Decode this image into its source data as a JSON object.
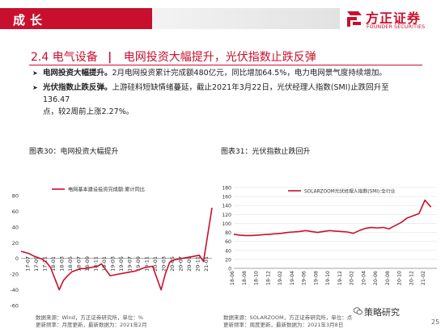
{
  "header": {
    "section_tag": "成长",
    "logo_cn": "方正证券",
    "logo_en": "FOUNDER SECURITIES",
    "brand_color": "#c8102e"
  },
  "heading": {
    "number": "2.4 电气设备",
    "separator": "|",
    "title": "电网投资大幅提升，光伏指数止跌反弹"
  },
  "bullets": [
    {
      "lead": "电网投资大幅提升。",
      "line1": "2月电网投资累计完成额480亿元，同比增加64.5%，电力电网景气度持续增加。",
      "line2": ""
    },
    {
      "lead": "光伏指数止跌反弹。",
      "line1": "上游硅料短缺情绪蔓延，截止2021年3月22日，光伏经理人指数(SMI)止跌回升至136.47",
      "line2": "点，较2周前上涨2.27%。"
    }
  ],
  "figures": [
    {
      "title": "图表30：电网投资大幅提升",
      "source_line1": "数据来源：Wind，方正证券研究所，单位：%",
      "source_line2": "更新频率：月度更新，最新数据为：2021年2月"
    },
    {
      "title": "图表31：光伏指数止跌回升",
      "source_line1": "数据来源：SOLARZOOM，方正证券研究所，单位：点",
      "source_line2": "更新频率：周度更新，最新数据为：2021年3月8日"
    }
  ],
  "chart_data": [
    {
      "type": "line",
      "legend": "电网基本建设投资完成额:累计同比",
      "legend_position": "top-left",
      "x_tick_labels": [
        "17-07",
        "17-09",
        "17-11",
        "18-01",
        "18-03",
        "18-05",
        "18-07",
        "18-09",
        "18-11",
        "19-01",
        "19-03",
        "19-05",
        "19-07",
        "19-09",
        "19-11",
        "20-01",
        "20-03",
        "20-05",
        "20-07",
        "20-09",
        "20-11",
        "21-01"
      ],
      "x": [
        "17-05",
        "17-06",
        "17-07",
        "17-08",
        "17-09",
        "17-10",
        "17-11",
        "17-12",
        "18-02",
        "18-03",
        "18-04",
        "18-05",
        "18-06",
        "18-07",
        "18-08",
        "18-09",
        "18-10",
        "18-11",
        "18-12",
        "19-02",
        "19-03",
        "19-04",
        "19-05",
        "19-06",
        "19-07",
        "19-08",
        "19-09",
        "19-10",
        "19-11",
        "19-12",
        "20-02",
        "20-03",
        "20-04",
        "20-05",
        "20-06",
        "20-07",
        "20-08",
        "20-09",
        "20-10",
        "20-11",
        "20-12",
        "21-02"
      ],
      "values": [
        9,
        7.5,
        6,
        3,
        1,
        -1,
        -5,
        -12,
        -40,
        -28,
        -22,
        -17,
        -15,
        -13,
        -13,
        -12,
        -11,
        -10,
        -7,
        -22,
        -21,
        -20,
        -19,
        -18,
        -17,
        -16,
        -14,
        -12,
        -11,
        -10,
        -40,
        -20,
        -5,
        -2,
        -1,
        0,
        1,
        2,
        3,
        4,
        -4,
        64.5
      ],
      "ylim": [
        -60,
        80
      ],
      "yticks": [
        -60,
        -40,
        -20,
        0,
        20,
        40,
        60,
        80
      ],
      "color": "#c8102e",
      "grid": false
    },
    {
      "type": "line",
      "legend": "SOLARZOOM光伏经理人指数(SMI):全行业",
      "legend_position": "top-left",
      "x_tick_labels": [
        "18-06",
        "18-08",
        "18-10",
        "18-12",
        "19-02",
        "19-04",
        "19-06",
        "19-08",
        "19-10",
        "19-12",
        "20-02",
        "20-04",
        "20-06",
        "20-08",
        "20-10",
        "20-12",
        "21-02"
      ],
      "x": [
        "18-06",
        "18-07",
        "18-08",
        "18-09",
        "18-10",
        "18-11",
        "18-12",
        "19-01",
        "19-02",
        "19-03",
        "19-04",
        "19-05",
        "19-06",
        "19-07",
        "19-08",
        "19-09",
        "19-10",
        "19-11",
        "19-12",
        "20-01",
        "20-02",
        "20-03",
        "20-04",
        "20-05",
        "20-06",
        "20-07",
        "20-08",
        "20-09",
        "20-10",
        "20-11",
        "20-12",
        "21-01",
        "21-02",
        "21-03"
      ],
      "values": [
        76,
        74,
        73,
        73,
        74,
        75,
        76,
        77,
        78,
        80,
        81,
        82,
        84,
        82,
        80,
        82,
        84,
        83,
        82,
        81,
        78,
        84,
        89,
        91,
        90,
        91,
        88,
        95,
        102,
        112,
        117,
        122,
        152,
        136.47
      ],
      "ylim": [
        0,
        180
      ],
      "yticks": [
        0,
        20,
        40,
        60,
        80,
        100,
        120,
        140,
        160,
        180
      ],
      "color": "#c8102e",
      "grid": true
    }
  ],
  "watermark": "策略研究",
  "page_number": "25"
}
